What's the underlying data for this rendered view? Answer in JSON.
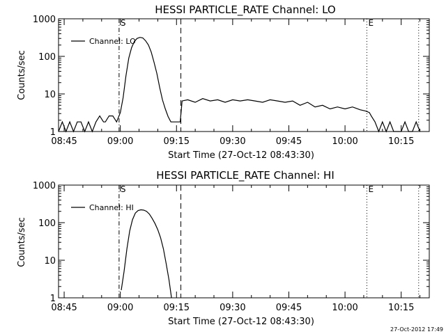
{
  "footer": {
    "timestamp": "27-Oct-2012 17:49"
  },
  "chart_data": [
    {
      "type": "line",
      "title": "HESSI PARTICLE_RATE Channel: LO",
      "xlabel": "Start Time (27-Oct-12 08:43:30)",
      "ylabel": "Counts/sec",
      "yscale": "log",
      "ylim": [
        1,
        1000
      ],
      "xlim": [
        "08:43:30",
        "10:22:30"
      ],
      "x_ticks": [
        "08:45",
        "09:00",
        "09:15",
        "09:30",
        "09:45",
        "10:00",
        "10:15"
      ],
      "y_ticks": [
        "1",
        "10",
        "100",
        "1000"
      ],
      "markers": [
        {
          "time": "08:59:40",
          "style": "dash-dot",
          "label": "S"
        },
        {
          "time": "09:16:10",
          "style": "dashed",
          "label": ""
        },
        {
          "time": "10:05:50",
          "style": "dotted",
          "label": "E"
        },
        {
          "time": "10:19:40",
          "style": "dotted",
          "label": ""
        }
      ],
      "legend": {
        "placement": "top-left",
        "entries": [
          "Channel: LO"
        ]
      },
      "series": [
        {
          "name": "Channel: LO",
          "x": [
            "08:43:30",
            "08:44:30",
            "08:45:30",
            "08:46:30",
            "08:47:30",
            "08:48:30",
            "08:49:30",
            "08:50:30",
            "08:51:30",
            "08:52:30",
            "08:53:30",
            "08:54:30",
            "08:55:30",
            "08:56:00",
            "08:57:00",
            "08:58:00",
            "08:59:00",
            "09:00:00",
            "09:00:45",
            "09:01:30",
            "09:02:15",
            "09:03:00",
            "09:03:45",
            "09:04:30",
            "09:05:15",
            "09:06:00",
            "09:06:45",
            "09:07:30",
            "09:08:15",
            "09:09:00",
            "09:09:45",
            "09:10:30",
            "09:11:15",
            "09:12:00",
            "09:12:45",
            "09:13:30",
            "09:14:15",
            "09:15:00",
            "09:16:00",
            "09:16:30",
            "09:18:00",
            "09:20:00",
            "09:22:00",
            "09:24:00",
            "09:26:00",
            "09:28:00",
            "09:30:00",
            "09:32:00",
            "09:34:00",
            "09:36:00",
            "09:38:00",
            "09:40:00",
            "09:42:00",
            "09:44:00",
            "09:46:00",
            "09:48:00",
            "09:50:00",
            "09:52:00",
            "09:54:00",
            "09:56:00",
            "09:58:00",
            "10:00:00",
            "10:02:00",
            "10:04:00",
            "10:05:30",
            "10:06:30",
            "10:07:00",
            "10:08:00",
            "10:09:00",
            "10:10:00",
            "10:11:00",
            "10:12:00",
            "10:13:00",
            "10:14:00",
            "10:15:00",
            "10:16:00",
            "10:17:00",
            "10:18:00",
            "10:19:00",
            "10:20:00"
          ],
          "values": [
            1,
            1.8,
            1,
            1.8,
            1,
            1.8,
            1.8,
            1,
            1.8,
            1,
            1.8,
            2.6,
            1.8,
            1.8,
            2.6,
            2.6,
            1.8,
            3.2,
            8,
            30,
            90,
            170,
            250,
            300,
            320,
            310,
            260,
            200,
            130,
            70,
            35,
            15,
            7,
            4,
            2.5,
            1.8,
            1.8,
            1.8,
            1.8,
            6.5,
            7,
            6,
            7.5,
            6.5,
            7,
            6,
            7,
            6.5,
            7,
            6.5,
            6,
            7,
            6.5,
            6,
            6.5,
            5,
            6,
            4.5,
            5,
            4,
            4.5,
            4,
            4.5,
            3.8,
            3.5,
            3.2,
            2.6,
            1.8,
            1,
            1.8,
            1,
            1.8,
            1,
            1,
            1,
            1.8,
            1,
            1,
            1.8,
            1
          ]
        }
      ]
    },
    {
      "type": "line",
      "title": "HESSI PARTICLE_RATE Channel: HI",
      "xlabel": "Start Time (27-Oct-12 08:43:30)",
      "ylabel": "Counts/sec",
      "yscale": "log",
      "ylim": [
        1,
        1000
      ],
      "xlim": [
        "08:43:30",
        "10:22:30"
      ],
      "x_ticks": [
        "08:45",
        "09:00",
        "09:15",
        "09:30",
        "09:45",
        "10:00",
        "10:15"
      ],
      "y_ticks": [
        "1",
        "10",
        "100",
        "1000"
      ],
      "markers": [
        {
          "time": "08:59:40",
          "style": "dash-dot",
          "label": "S"
        },
        {
          "time": "09:16:10",
          "style": "dashed",
          "label": ""
        },
        {
          "time": "10:05:50",
          "style": "dotted",
          "label": "E"
        },
        {
          "time": "10:19:40",
          "style": "dotted",
          "label": ""
        }
      ],
      "legend": {
        "placement": "top-left",
        "entries": [
          "Channel: HI"
        ]
      },
      "series": [
        {
          "name": "Channel: HI",
          "x": [
            "09:00:15",
            "09:01:00",
            "09:01:45",
            "09:02:30",
            "09:03:15",
            "09:04:00",
            "09:04:45",
            "09:05:30",
            "09:06:15",
            "09:07:00",
            "09:07:45",
            "09:08:30",
            "09:09:15",
            "09:10:00",
            "09:10:45",
            "09:11:30",
            "09:12:15",
            "09:13:00",
            "09:13:40"
          ],
          "values": [
            1.6,
            5,
            20,
            60,
            120,
            180,
            210,
            220,
            215,
            200,
            170,
            130,
            95,
            65,
            40,
            20,
            8,
            3,
            1
          ]
        }
      ]
    }
  ]
}
